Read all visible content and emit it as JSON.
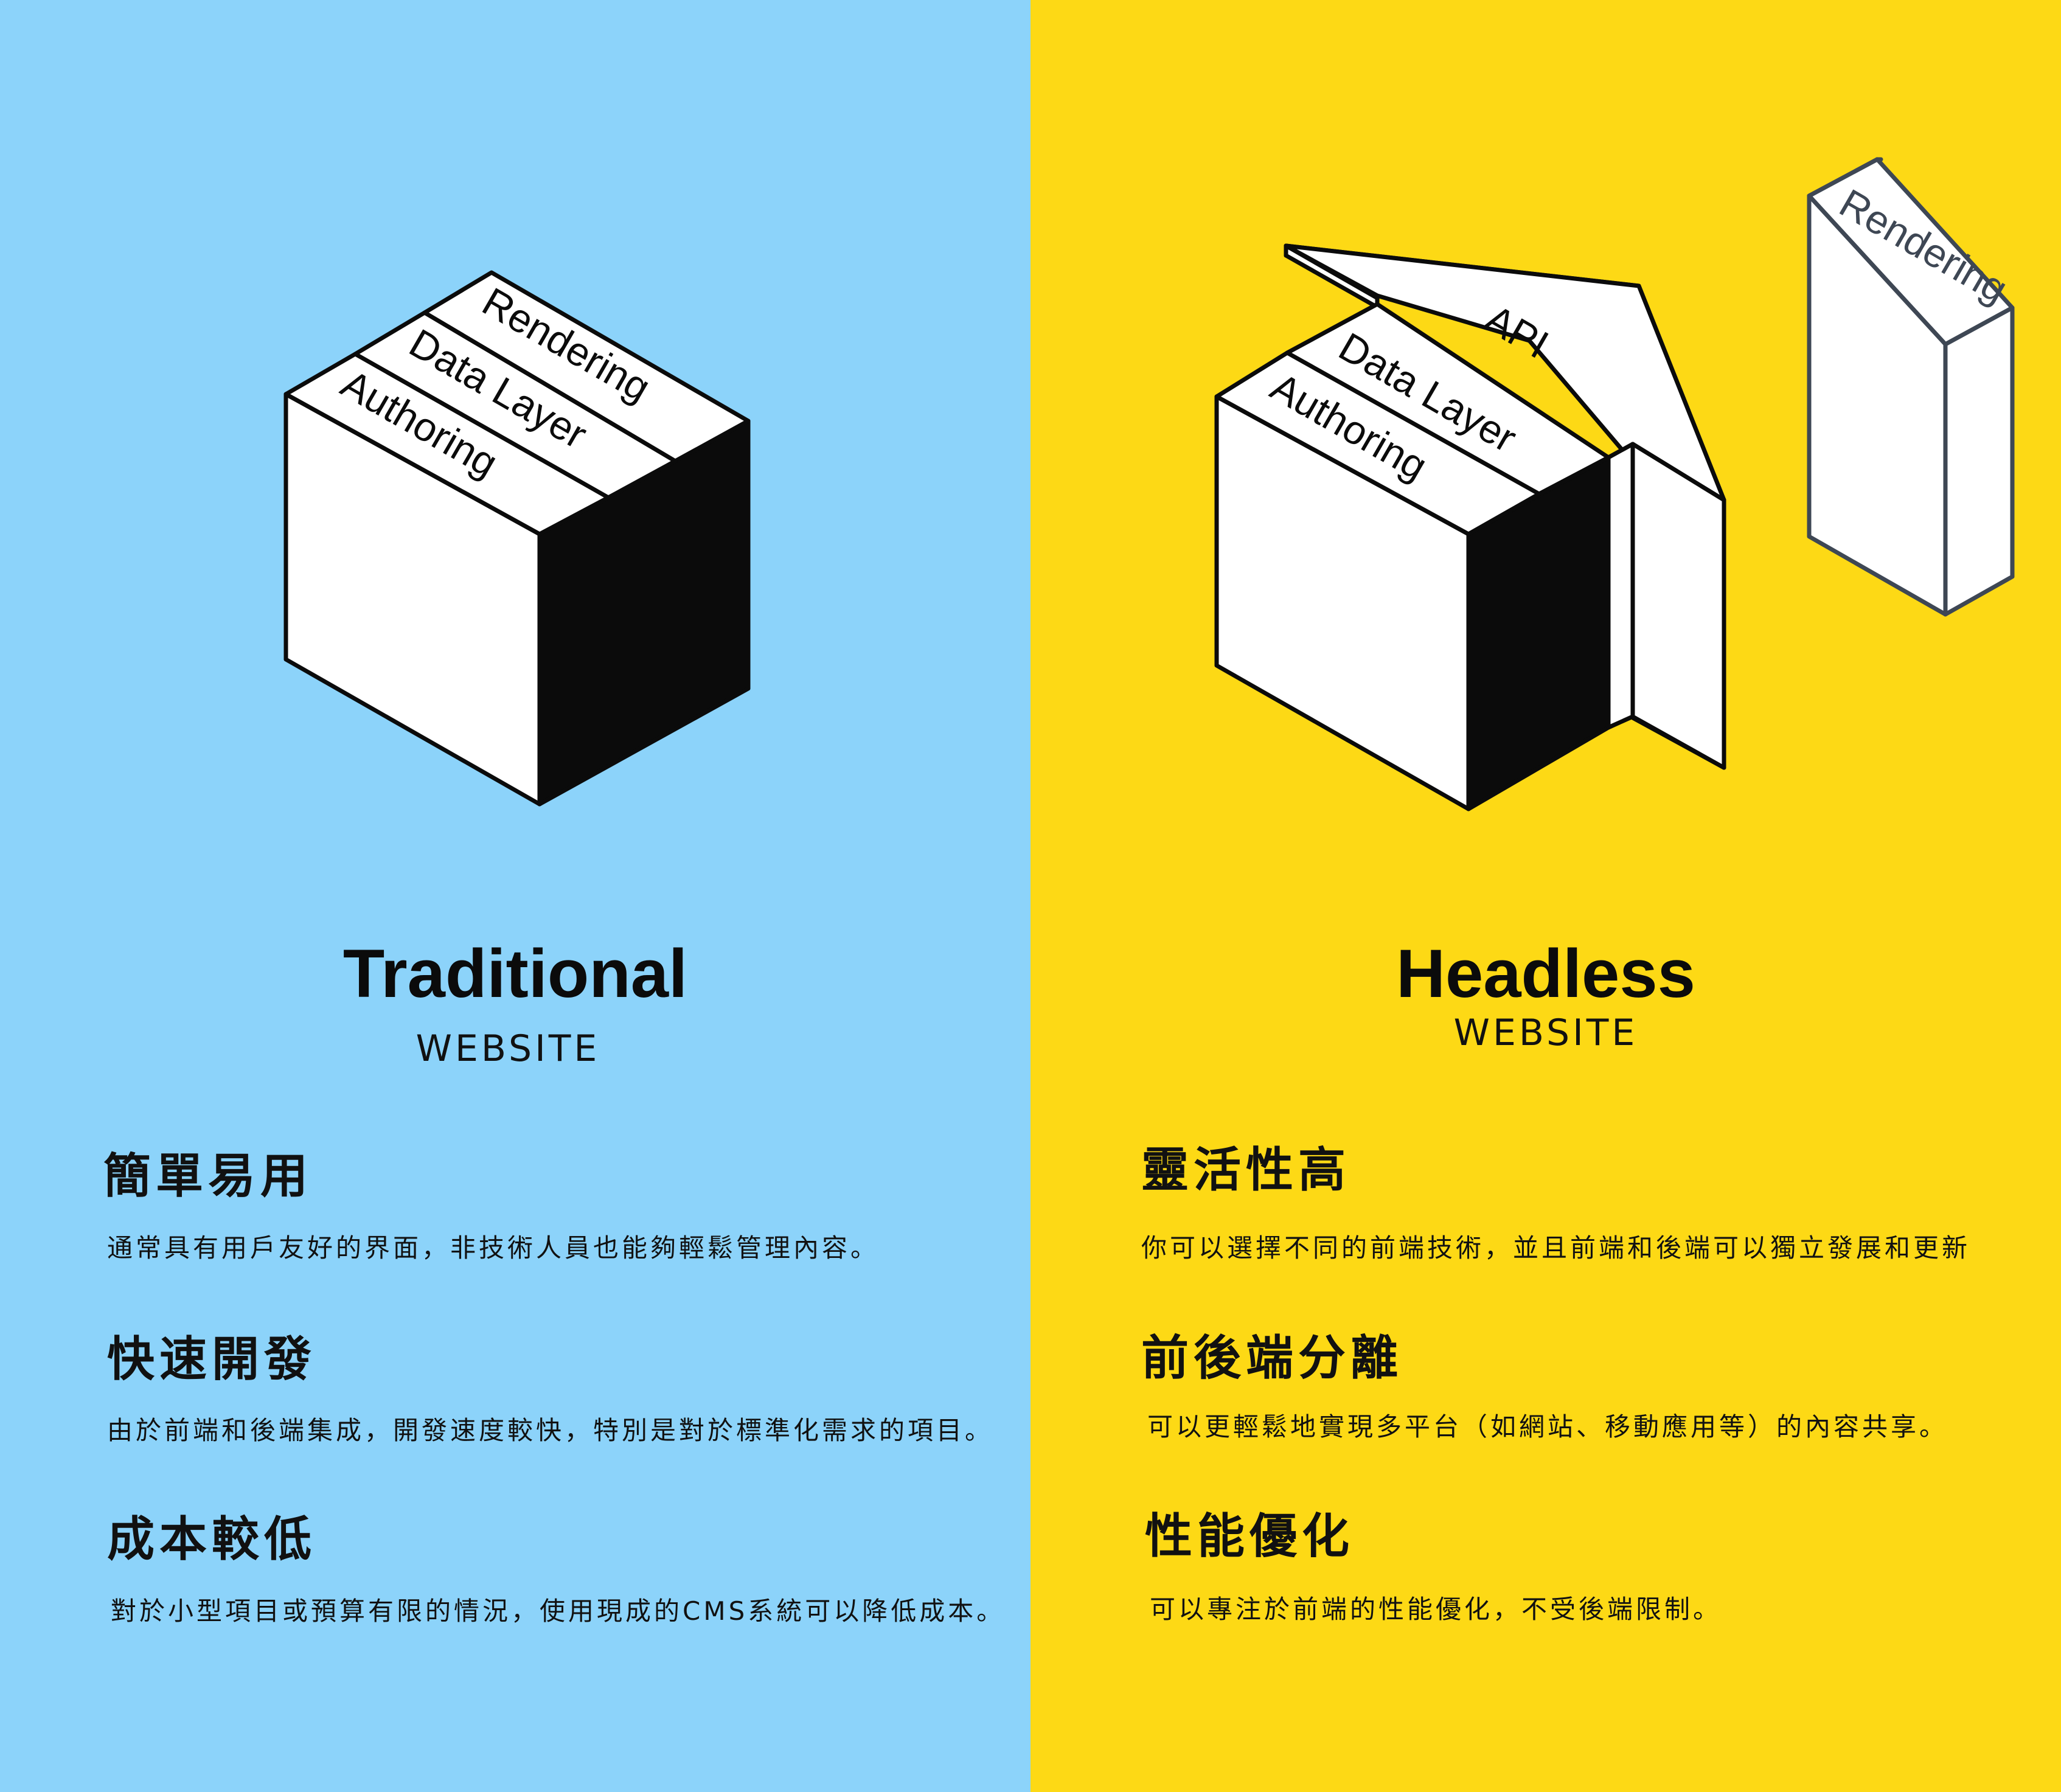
{
  "colors": {
    "left_bg": "#8CD3FA",
    "right_bg": "#FDD915",
    "ink": "#0B0B0B",
    "rendering_stroke": "#3E4754"
  },
  "traditional": {
    "title": "Traditional",
    "subtitle": "WEBSITE",
    "layers": {
      "rendering": "Rendering",
      "data_layer": "Data Layer",
      "authoring": "Authoring"
    },
    "features": [
      {
        "title": "簡單易用",
        "desc": "通常具有用戶友好的界面，非技術人員也能夠輕鬆管理內容。"
      },
      {
        "title": "快速開發",
        "desc": "由於前端和後端集成，開發速度較快，特別是對於標準化需求的項目。"
      },
      {
        "title": "成本較低",
        "desc": "對於小型項目或預算有限的情況，使用現成的CMS系統可以降低成本。"
      }
    ]
  },
  "headless": {
    "title": "Headless",
    "subtitle": "WEBSITE",
    "layers": {
      "api": "API",
      "rendering": "Rendering",
      "data_layer": "Data Layer",
      "authoring": "Authoring"
    },
    "features": [
      {
        "title": "靈活性高",
        "desc": "你可以選擇不同的前端技術，並且前端和後端可以獨立發展和更新"
      },
      {
        "title": "前後端分離",
        "desc": "可以更輕鬆地實現多平台（如網站、移動應用等）的內容共享。"
      },
      {
        "title": "性能優化",
        "desc": "可以專注於前端的性能優化，不受後端限制。"
      }
    ]
  }
}
